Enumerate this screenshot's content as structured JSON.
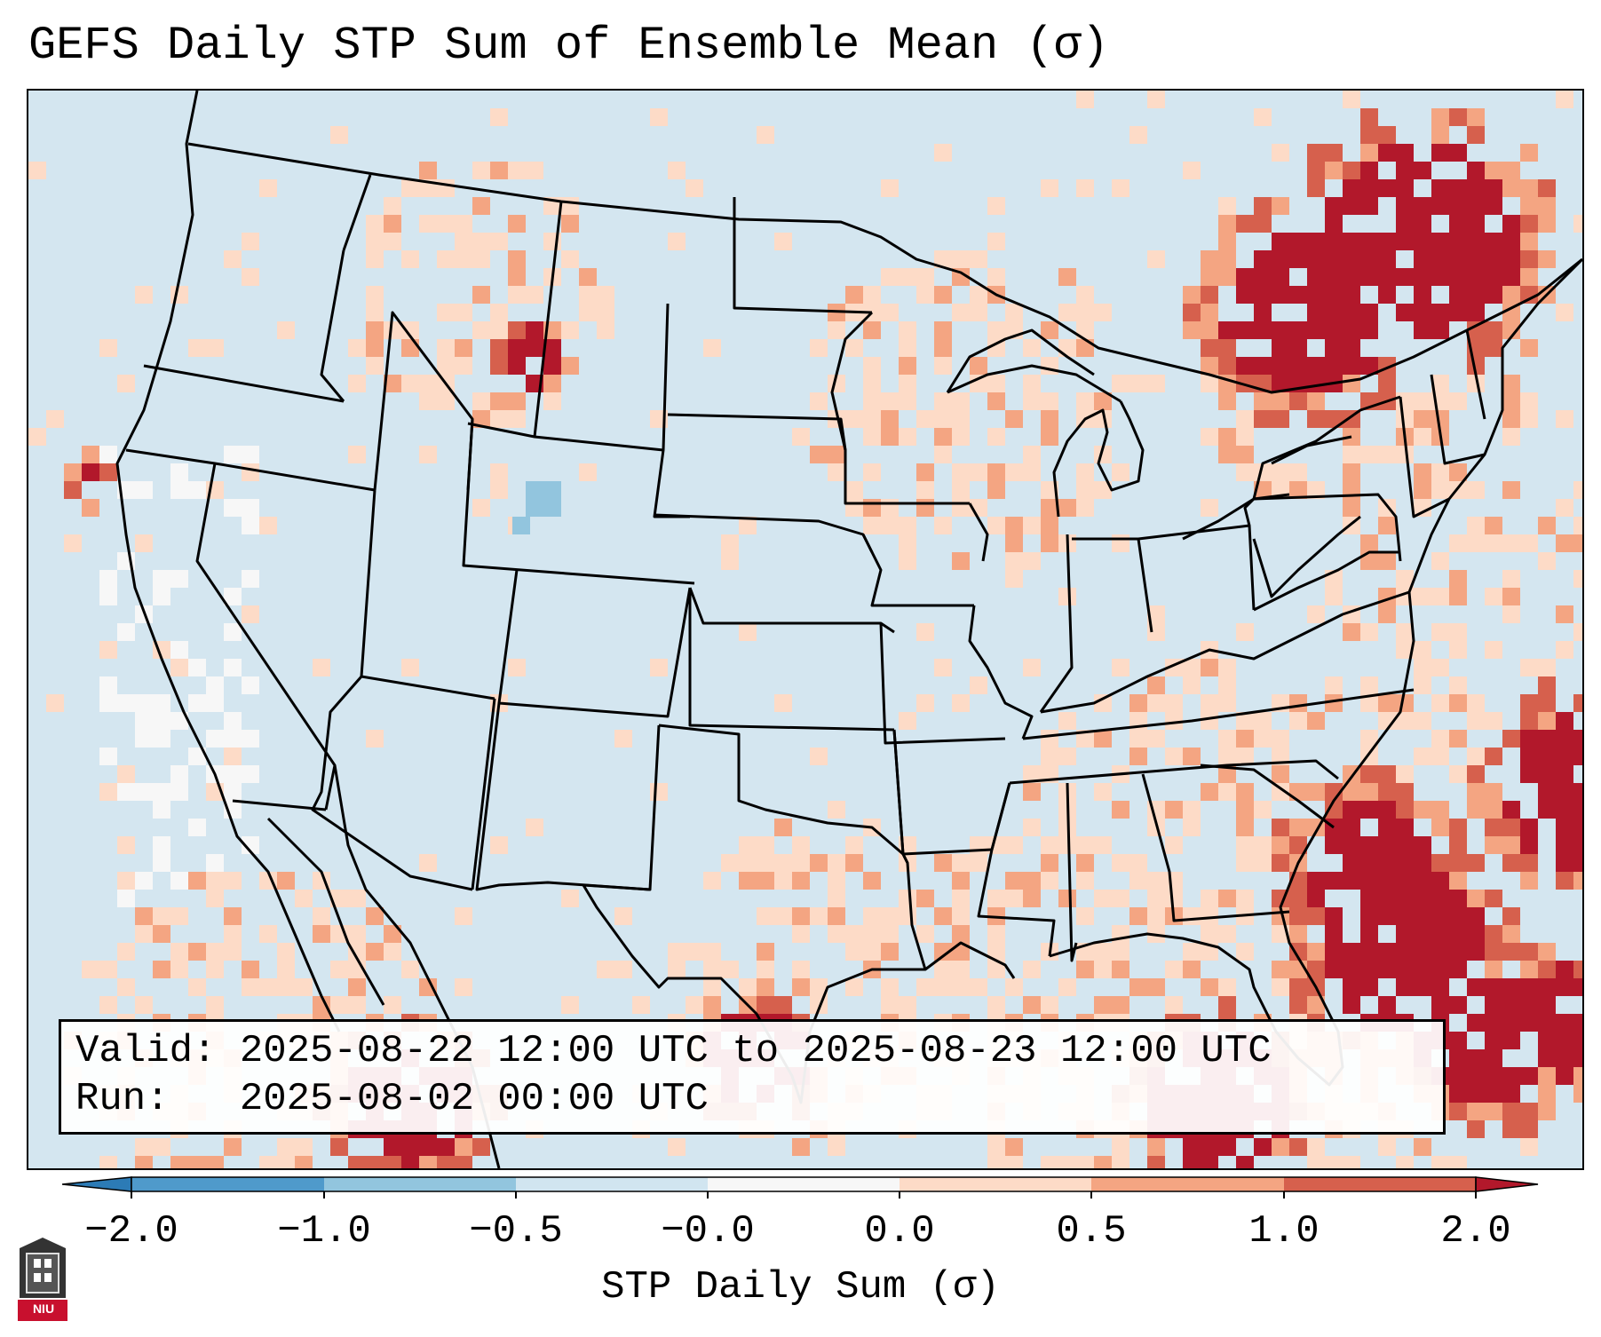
{
  "title": "GEFS Daily STP Sum of Ensemble Mean (σ)",
  "info": {
    "valid_line": "Valid: 2025-08-22 12:00 UTC to 2025-08-23 12:00 UTC",
    "run_line": "Run:   2025-08-02 00:00 UTC"
  },
  "colorbar": {
    "label": "STP Daily Sum (σ)",
    "ticks": [
      "−2.0",
      "−1.0",
      "−0.5",
      "−0.0",
      "0.0",
      "0.5",
      "1.0",
      "2.0"
    ],
    "colors": [
      "#2c7bb6",
      "#4f9acb",
      "#92c5de",
      "#d1e5f0",
      "#f7f7f7",
      "#fddbc7",
      "#f4a582",
      "#d6604d",
      "#b2182b"
    ]
  },
  "logo": {
    "text": "NIU"
  }
}
